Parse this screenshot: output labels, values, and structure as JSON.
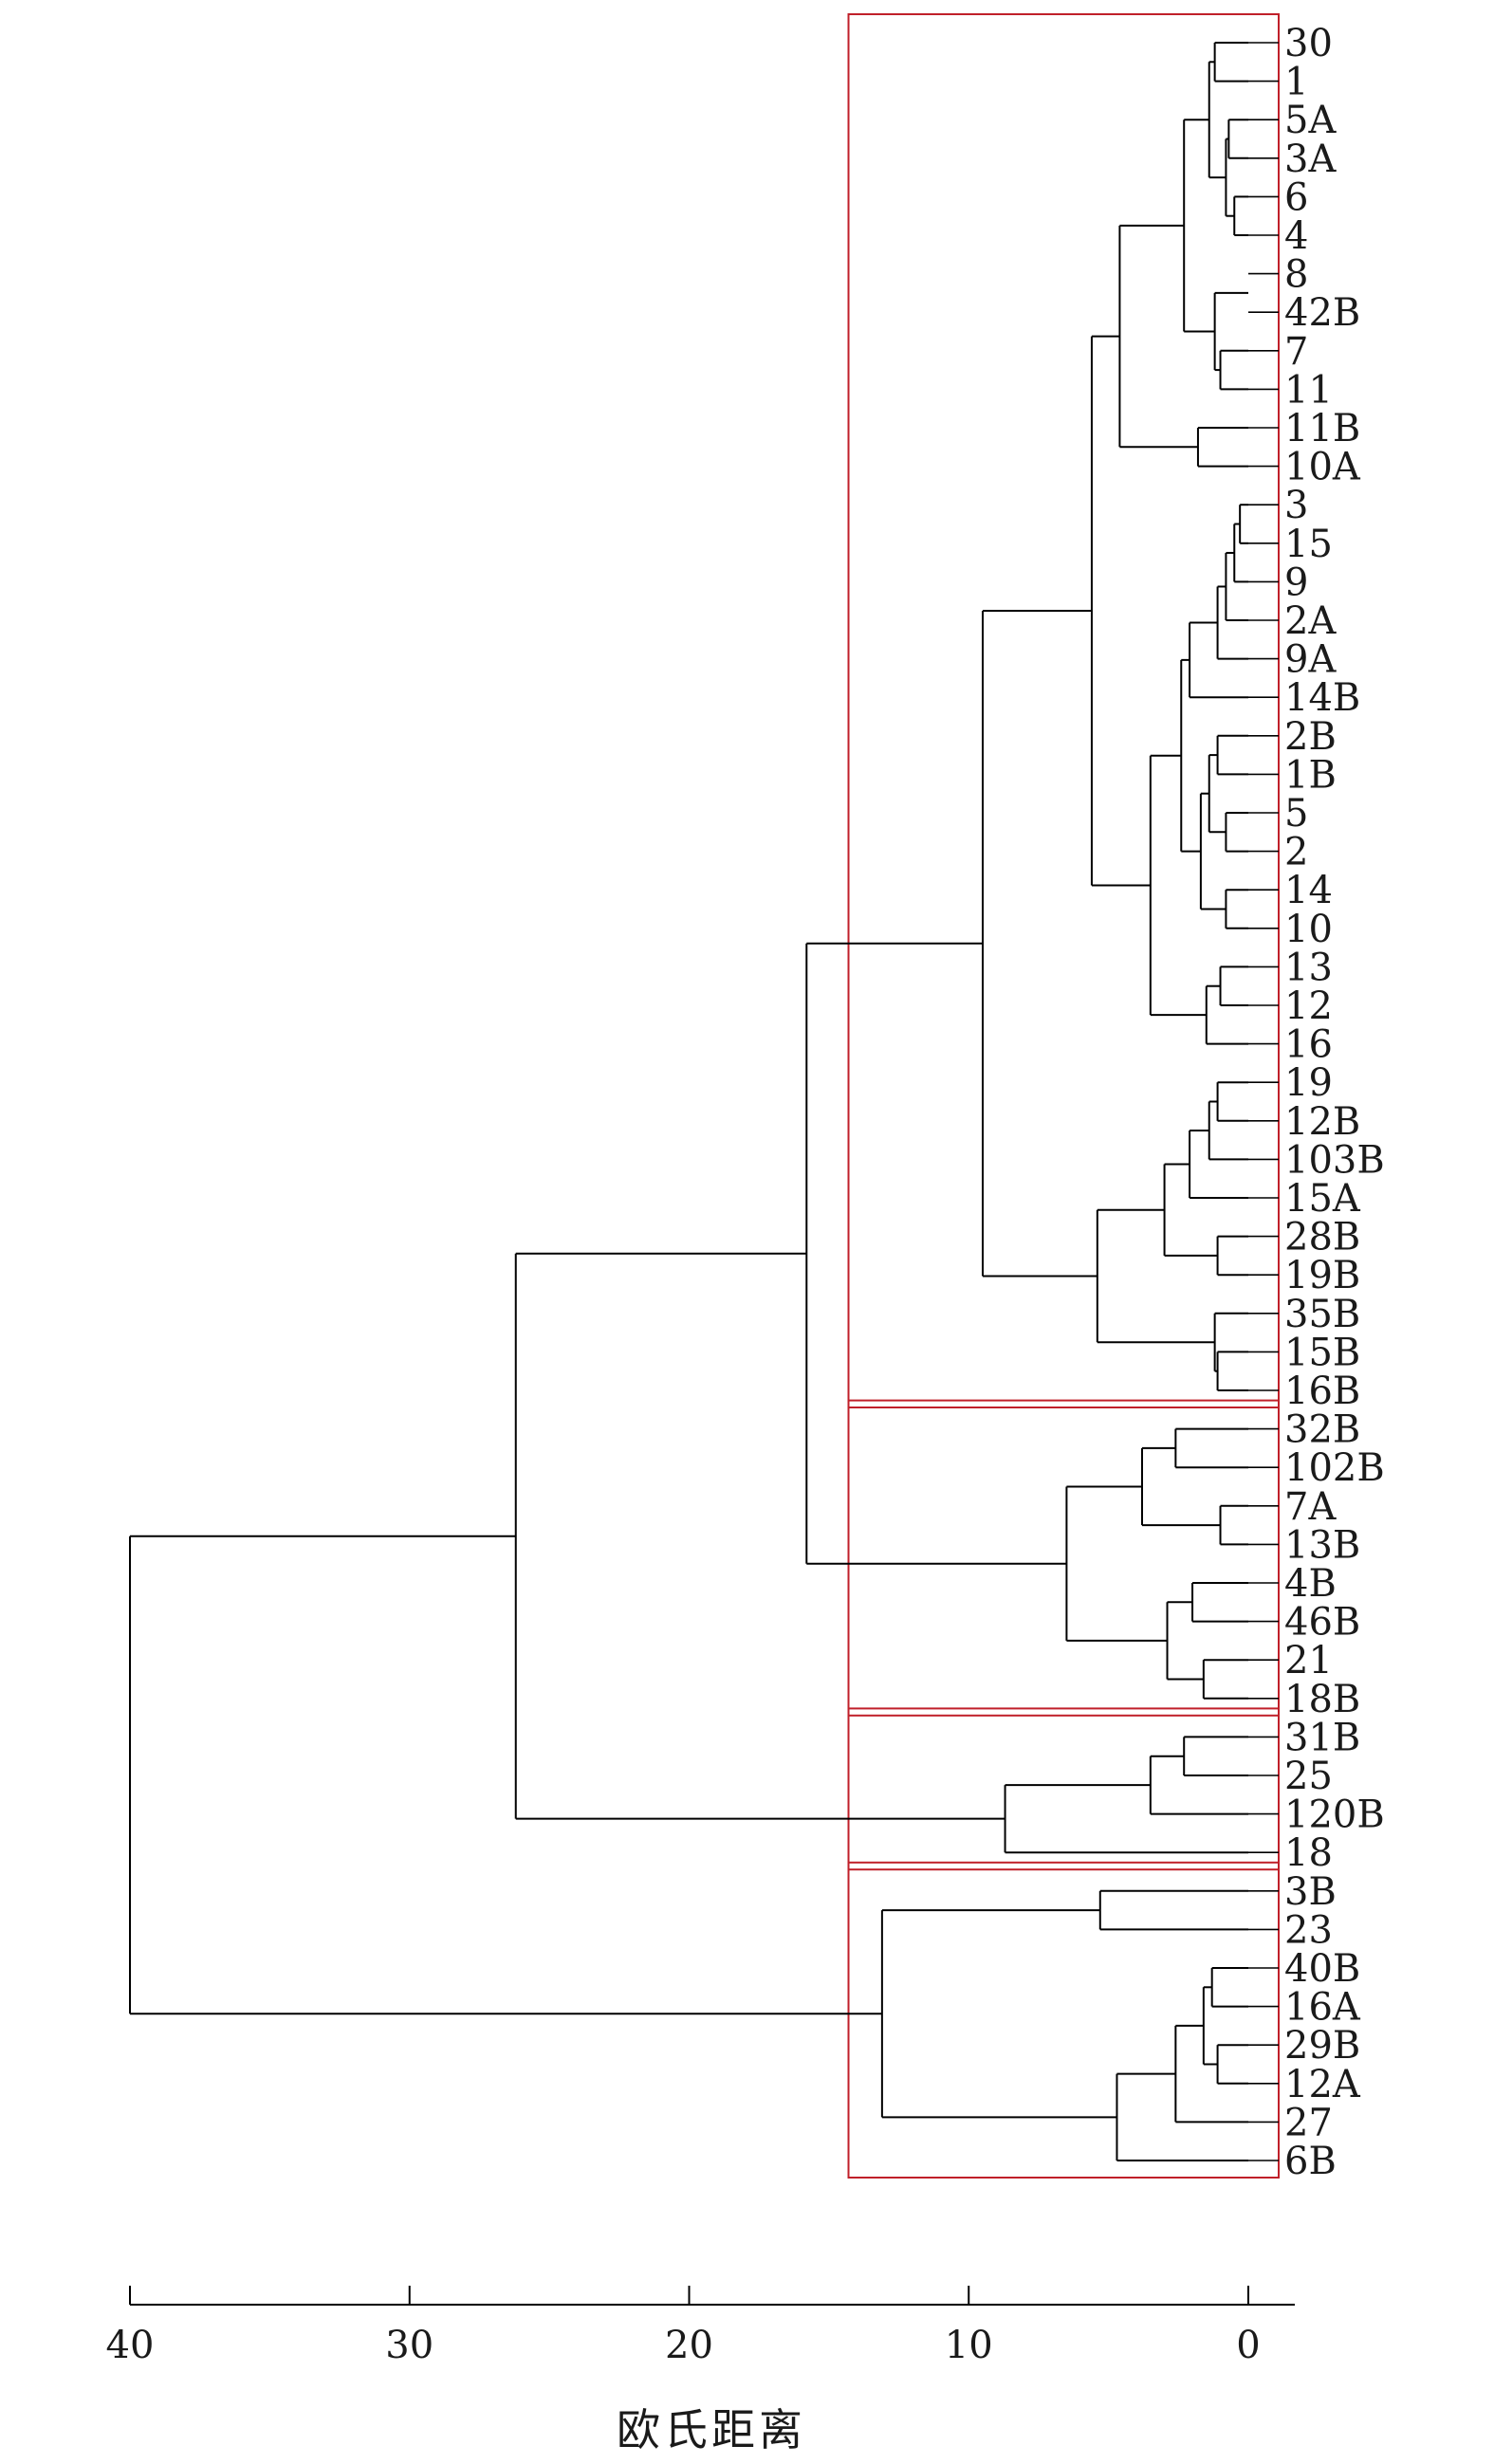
{
  "chart_data": {
    "type": "dendrogram",
    "orientation": "right-to-left",
    "xlabel": "欧氏距离",
    "xlim": [
      40,
      0
    ],
    "xticks": [
      40,
      30,
      20,
      10,
      0
    ],
    "leaves": [
      "30",
      "1",
      "5A",
      "3A",
      "6",
      "4",
      "8",
      "42B",
      "7",
      "11",
      "11B",
      "10A",
      "3",
      "15",
      "9",
      "2A",
      "9A",
      "14B",
      "2B",
      "1B",
      "5",
      "2",
      "14",
      "10",
      "13",
      "12",
      "16",
      "19",
      "12B",
      "103B",
      "15A",
      "28B",
      "19B",
      "35B",
      "15B",
      "16B",
      "32B",
      "102B",
      "7A",
      "13B",
      "4B",
      "46B",
      "21",
      "18B",
      "31B",
      "25",
      "120B",
      "18",
      "3B",
      "23",
      "40B",
      "16A",
      "29B",
      "12A",
      "27",
      "6B"
    ],
    "merges": [
      {
        "left": [
          "3"
        ],
        "right": [
          "15"
        ],
        "height": 0.3
      },
      {
        "left": [
          "3",
          "15"
        ],
        "right": [
          "9"
        ],
        "height": 0.5
      },
      {
        "left": [
          "6"
        ],
        "right": [
          "4"
        ],
        "height": 0.5
      },
      {
        "left": [
          "5A"
        ],
        "right": [
          "3A"
        ],
        "height": 0.7
      },
      {
        "left": [
          "5A",
          "3A"
        ],
        "right": [
          "6",
          "4"
        ],
        "height": 0.8
      },
      {
        "left": [
          "3",
          "15",
          "9"
        ],
        "right": [
          "2A"
        ],
        "height": 0.8
      },
      {
        "left": [
          "5"
        ],
        "right": [
          "2"
        ],
        "height": 0.8
      },
      {
        "left": [
          "14"
        ],
        "right": [
          "10"
        ],
        "height": 0.8
      },
      {
        "left": [
          "7"
        ],
        "right": [
          "11"
        ],
        "height": 1.0
      },
      {
        "left": [
          "13"
        ],
        "right": [
          "12"
        ],
        "height": 1.0
      },
      {
        "left": [
          "7A"
        ],
        "right": [
          "13B"
        ],
        "height": 1.0
      },
      {
        "left": [
          "3",
          "15",
          "9",
          "2A"
        ],
        "right": [
          "9A"
        ],
        "height": 1.1
      },
      {
        "left": [
          "2B"
        ],
        "right": [
          "1B"
        ],
        "height": 1.1
      },
      {
        "left": [
          "19"
        ],
        "right": [
          "12B"
        ],
        "height": 1.1
      },
      {
        "left": [
          "28B"
        ],
        "right": [
          "19B"
        ],
        "height": 1.1
      },
      {
        "left": [
          "15B"
        ],
        "right": [
          "16B"
        ],
        "height": 1.1
      },
      {
        "left": [
          "29B"
        ],
        "right": [
          "12A"
        ],
        "height": 1.1
      },
      {
        "left": [
          "30"
        ],
        "right": [
          "1"
        ],
        "height": 1.2
      },
      {
        "left": [
          "35B"
        ],
        "right": [
          "15B",
          "16B"
        ],
        "height": 1.2
      },
      {
        "left": [
          "40B"
        ],
        "right": [
          "16A"
        ],
        "height": 1.3
      },
      {
        "left": [
          "30",
          "1"
        ],
        "right": [
          "5A",
          "3A",
          "6",
          "4"
        ],
        "height": 1.4
      },
      {
        "left": [
          "2B",
          "1B"
        ],
        "right": [
          "5",
          "2"
        ],
        "height": 1.4
      },
      {
        "left": [
          "19",
          "12B"
        ],
        "right": [
          "103B"
        ],
        "height": 1.4
      },
      {
        "left": [
          "13",
          "12"
        ],
        "right": [
          "16"
        ],
        "height": 1.5
      },
      {
        "left": [
          "7",
          "11"
        ],
        "right": [
          "8",
          "42B"
        ],
        "height": 1.2
      },
      {
        "left": [
          "21"
        ],
        "right": [
          "18B"
        ],
        "height": 1.6
      },
      {
        "left": [
          "8",
          "42B",
          "7",
          "11"
        ],
        "right": [],
        "height": 1.7
      },
      {
        "left": [
          "40B",
          "16A"
        ],
        "right": [
          "29B",
          "12A"
        ],
        "height": 1.6
      },
      {
        "left": [
          "2B",
          "1B",
          "5",
          "2"
        ],
        "right": [
          "14",
          "10"
        ],
        "height": 1.7
      },
      {
        "left": [
          "3",
          "15",
          "9",
          "2A",
          "9A"
        ],
        "right": [
          "14B"
        ],
        "height": 2.1
      },
      {
        "left": [
          "11B"
        ],
        "right": [
          "10A"
        ],
        "height": 1.8
      },
      {
        "left": [
          "4B"
        ],
        "right": [
          "46B"
        ],
        "height": 2.0
      },
      {
        "left": [
          "31B"
        ],
        "right": [
          "25"
        ],
        "height": 2.3
      },
      {
        "left": [
          "19",
          "12B",
          "103B"
        ],
        "right": [
          "15A"
        ],
        "height": 2.1
      },
      {
        "left": [
          "32B"
        ],
        "right": [
          "102B"
        ],
        "height": 2.6
      },
      {
        "left": [
          "30",
          "1",
          "5A",
          "3A",
          "6",
          "4"
        ],
        "right": [
          "8",
          "42B",
          "7",
          "11"
        ],
        "height": 2.3
      },
      {
        "left": [
          "3",
          "15",
          "9",
          "2A",
          "9A",
          "14B"
        ],
        "right": [
          "2B",
          "1B",
          "5",
          "2",
          "14",
          "10"
        ],
        "height": 2.4
      },
      {
        "left": [
          "40B",
          "16A",
          "29B",
          "12A"
        ],
        "right": [
          "27"
        ],
        "height": 2.6
      },
      {
        "left": [
          "4B",
          "46B"
        ],
        "right": [
          "21",
          "18B"
        ],
        "height": 2.9
      },
      {
        "left": [
          "19",
          "12B",
          "103B",
          "15A"
        ],
        "right": [
          "28B",
          "19B"
        ],
        "height": 3.0
      },
      {
        "left": [
          "3",
          "15",
          "9",
          "2A",
          "9A",
          "14B",
          "2B",
          "1B",
          "5",
          "2",
          "14",
          "10"
        ],
        "right": [
          "13",
          "12",
          "16"
        ],
        "height": 3.5
      },
      {
        "left": [
          "31B",
          "25"
        ],
        "right": [
          "120B"
        ],
        "height": 3.5
      },
      {
        "left": [
          "32B",
          "102B"
        ],
        "right": [
          "7A",
          "13B"
        ],
        "height": 3.8
      },
      {
        "left": [
          "30",
          "1",
          "5A",
          "3A",
          "6",
          "4",
          "8",
          "42B",
          "7",
          "11"
        ],
        "right": [
          "11B",
          "10A"
        ],
        "height": 4.6
      },
      {
        "left": [
          "40B",
          "16A",
          "29B",
          "12A",
          "27"
        ],
        "right": [
          "6B"
        ],
        "height": 4.7
      },
      {
        "left": [
          "3B"
        ],
        "right": [
          "23"
        ],
        "height": 5.3
      },
      {
        "left": [
          "19",
          "12B",
          "103B",
          "15A",
          "28B",
          "19B"
        ],
        "right": [
          "35B",
          "15B",
          "16B"
        ],
        "height": 5.4
      },
      {
        "left": [
          "30",
          "1",
          "5A",
          "3A",
          "6",
          "4",
          "8",
          "42B",
          "7",
          "11",
          "11B",
          "10A"
        ],
        "right": [
          "3",
          "15",
          "9",
          "2A",
          "9A",
          "14B",
          "2B",
          "1B",
          "5",
          "2",
          "14",
          "10",
          "13",
          "12",
          "16"
        ],
        "height": 5.6
      },
      {
        "left": [
          "32B",
          "102B",
          "7A",
          "13B"
        ],
        "right": [
          "4B",
          "46B",
          "21",
          "18B"
        ],
        "height": 6.5
      },
      {
        "left": [
          "31B",
          "25",
          "120B"
        ],
        "right": [
          "18"
        ],
        "height": 8.7
      },
      {
        "left": [
          "30",
          "1",
          "5A",
          "3A",
          "6",
          "4",
          "8",
          "42B",
          "7",
          "11",
          "11B",
          "10A",
          "3",
          "15",
          "9",
          "2A",
          "9A",
          "14B",
          "2B",
          "1B",
          "5",
          "2",
          "14",
          "10",
          "13",
          "12",
          "16"
        ],
        "right": [
          "19",
          "12B",
          "103B",
          "15A",
          "28B",
          "19B",
          "35B",
          "15B",
          "16B"
        ],
        "height": 9.5
      },
      {
        "left": [
          "3B",
          "23"
        ],
        "right": [
          "40B",
          "16A",
          "29B",
          "12A",
          "27",
          "6B"
        ],
        "height": 13.1
      },
      {
        "left": [
          "30",
          "1",
          "5A",
          "3A",
          "6",
          "4",
          "8",
          "42B",
          "7",
          "11",
          "11B",
          "10A",
          "3",
          "15",
          "9",
          "2A",
          "9A",
          "14B",
          "2B",
          "1B",
          "5",
          "2",
          "14",
          "10",
          "13",
          "12",
          "16",
          "19",
          "12B",
          "103B",
          "15A",
          "28B",
          "19B",
          "35B",
          "15B",
          "16B"
        ],
        "right": [
          "32B",
          "102B",
          "7A",
          "13B",
          "4B",
          "46B",
          "21",
          "18B"
        ],
        "height": 15.8
      },
      {
        "left": [
          "30",
          "1",
          "5A",
          "3A",
          "6",
          "4",
          "8",
          "42B",
          "7",
          "11",
          "11B",
          "10A",
          "3",
          "15",
          "9",
          "2A",
          "9A",
          "14B",
          "2B",
          "1B",
          "5",
          "2",
          "14",
          "10",
          "13",
          "12",
          "16",
          "19",
          "12B",
          "103B",
          "15A",
          "28B",
          "19B",
          "35B",
          "15B",
          "16B",
          "32B",
          "102B",
          "7A",
          "13B",
          "4B",
          "46B",
          "21",
          "18B"
        ],
        "right": [
          "31B",
          "25",
          "120B",
          "18"
        ],
        "height": 26.2
      },
      {
        "left": [
          "30",
          "1",
          "5A",
          "3A",
          "6",
          "4",
          "8",
          "42B",
          "7",
          "11",
          "11B",
          "10A",
          "3",
          "15",
          "9",
          "2A",
          "9A",
          "14B",
          "2B",
          "1B",
          "5",
          "2",
          "14",
          "10",
          "13",
          "12",
          "16",
          "19",
          "12B",
          "103B",
          "15A",
          "28B",
          "19B",
          "35B",
          "15B",
          "16B",
          "32B",
          "102B",
          "7A",
          "13B",
          "4B",
          "46B",
          "21",
          "18B",
          "31B",
          "25",
          "120B",
          "18"
        ],
        "right": [
          "3B",
          "23",
          "40B",
          "16A",
          "29B",
          "12A",
          "27",
          "6B"
        ],
        "height": 40.0
      }
    ],
    "clusters": [
      {
        "first_leaf": "30",
        "last_leaf": "16B",
        "cut_height": 14.3
      },
      {
        "first_leaf": "32B",
        "last_leaf": "18B",
        "cut_height": 14.3
      },
      {
        "first_leaf": "31B",
        "last_leaf": "18",
        "cut_height": 14.3
      },
      {
        "first_leaf": "3B",
        "last_leaf": "6B",
        "cut_height": 14.3
      }
    ],
    "colors": {
      "tree": "#000000",
      "cluster_box": "#c0202a",
      "text": "#1a1a1a"
    }
  }
}
